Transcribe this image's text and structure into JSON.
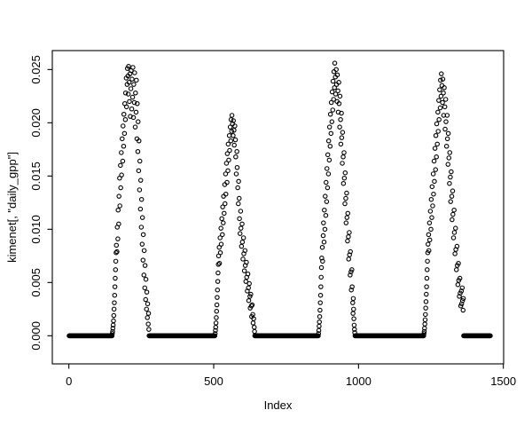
{
  "figure": {
    "background": "#ffffff",
    "foreground": "#000000"
  },
  "chart_data": {
    "type": "scatter",
    "title": "",
    "xlabel": "Index",
    "ylabel": "kimenet[, \"daily_gpp\"]",
    "marker": "open-circle",
    "point_color": "#000000",
    "grid": false,
    "legend": "none",
    "xlim": [
      -57.2,
      1501
    ],
    "ylim": [
      -0.00264,
      0.02678
    ],
    "x_tick_values": [
      0,
      500,
      1000,
      1500
    ],
    "x_tick_labels": [
      "0",
      "500",
      "1000",
      "1500"
    ],
    "y_tick_values": [
      0.0,
      0.005,
      0.01,
      0.015,
      0.02,
      0.025
    ],
    "y_tick_labels": [
      "0.000",
      "0.005",
      "0.010",
      "0.015",
      "0.020",
      "0.025"
    ],
    "n_points": 1455,
    "zero_value": 0.0,
    "zero_runs": [
      [
        1,
        149
      ],
      [
        277,
        504
      ],
      [
        642,
        861
      ],
      [
        988,
        1225
      ],
      [
        1363,
        1455
      ]
    ],
    "points": [
      [
        150,
        0.0002
      ],
      [
        151,
        0.0004
      ],
      [
        152,
        0.0007
      ],
      [
        153,
        0.001
      ],
      [
        154,
        0.0014
      ],
      [
        155,
        0.0019
      ],
      [
        156,
        0.0025
      ],
      [
        157,
        0.0031
      ],
      [
        158,
        0.0038
      ],
      [
        159,
        0.0046
      ],
      [
        160,
        0.0054
      ],
      [
        161,
        0.0062
      ],
      [
        162,
        0.007
      ],
      [
        163,
        0.0078
      ],
      [
        164,
        0.0085
      ],
      [
        166,
        0.0079
      ],
      [
        167,
        0.0102
      ],
      [
        169,
        0.0091
      ],
      [
        170,
        0.0118
      ],
      [
        172,
        0.0105
      ],
      [
        173,
        0.0131
      ],
      [
        175,
        0.0148
      ],
      [
        176,
        0.0122
      ],
      [
        178,
        0.016
      ],
      [
        179,
        0.0139
      ],
      [
        181,
        0.0172
      ],
      [
        182,
        0.0151
      ],
      [
        184,
        0.0185
      ],
      [
        186,
        0.0164
      ],
      [
        187,
        0.0197
      ],
      [
        189,
        0.0178
      ],
      [
        190,
        0.0208
      ],
      [
        192,
        0.019
      ],
      [
        193,
        0.0218
      ],
      [
        195,
        0.0203
      ],
      [
        196,
        0.0228
      ],
      [
        198,
        0.0242
      ],
      [
        199,
        0.0215
      ],
      [
        201,
        0.0236
      ],
      [
        202,
        0.0251
      ],
      [
        204,
        0.0244
      ],
      [
        205,
        0.0227
      ],
      [
        206,
        0.0253
      ],
      [
        208,
        0.0238
      ],
      [
        209,
        0.022
      ],
      [
        211,
        0.0246
      ],
      [
        212,
        0.0206
      ],
      [
        214,
        0.0232
      ],
      [
        215,
        0.0249
      ],
      [
        217,
        0.0213
      ],
      [
        218,
        0.0241
      ],
      [
        220,
        0.0224
      ],
      [
        221,
        0.0252
      ],
      [
        223,
        0.0205
      ],
      [
        224,
        0.0236
      ],
      [
        226,
        0.0219
      ],
      [
        227,
        0.0247
      ],
      [
        229,
        0.0196
      ],
      [
        230,
        0.0228
      ],
      [
        232,
        0.021
      ],
      [
        233,
        0.024
      ],
      [
        235,
        0.0185
      ],
      [
        236,
        0.0218
      ],
      [
        238,
        0.0173
      ],
      [
        239,
        0.0201
      ],
      [
        241,
        0.0155
      ],
      [
        242,
        0.0183
      ],
      [
        244,
        0.0137
      ],
      [
        245,
        0.0164
      ],
      [
        247,
        0.0119
      ],
      [
        248,
        0.0146
      ],
      [
        250,
        0.0102
      ],
      [
        251,
        0.0128
      ],
      [
        253,
        0.0086
      ],
      [
        254,
        0.0111
      ],
      [
        256,
        0.0071
      ],
      [
        257,
        0.0095
      ],
      [
        259,
        0.0057
      ],
      [
        260,
        0.008
      ],
      [
        262,
        0.0045
      ],
      [
        263,
        0.0066
      ],
      [
        265,
        0.0034
      ],
      [
        266,
        0.0053
      ],
      [
        268,
        0.0025
      ],
      [
        269,
        0.0041
      ],
      [
        271,
        0.0017
      ],
      [
        272,
        0.003
      ],
      [
        274,
        0.0011
      ],
      [
        275,
        0.0021
      ],
      [
        276,
        0.0006
      ],
      [
        505,
        0.0002
      ],
      [
        506,
        0.0005
      ],
      [
        507,
        0.0008
      ],
      [
        508,
        0.0012
      ],
      [
        509,
        0.0017
      ],
      [
        510,
        0.0023
      ],
      [
        511,
        0.0029
      ],
      [
        512,
        0.0036
      ],
      [
        513,
        0.0043
      ],
      [
        514,
        0.0051
      ],
      [
        515,
        0.0059
      ],
      [
        516,
        0.0067
      ],
      [
        517,
        0.0075
      ],
      [
        519,
        0.0083
      ],
      [
        520,
        0.0068
      ],
      [
        522,
        0.0092
      ],
      [
        523,
        0.0078
      ],
      [
        525,
        0.0101
      ],
      [
        526,
        0.0086
      ],
      [
        528,
        0.011
      ],
      [
        530,
        0.0095
      ],
      [
        531,
        0.0121
      ],
      [
        533,
        0.0106
      ],
      [
        534,
        0.0131
      ],
      [
        536,
        0.0115
      ],
      [
        538,
        0.0142
      ],
      [
        539,
        0.0124
      ],
      [
        541,
        0.0152
      ],
      [
        542,
        0.0133
      ],
      [
        544,
        0.0162
      ],
      [
        546,
        0.0144
      ],
      [
        547,
        0.0171
      ],
      [
        549,
        0.0155
      ],
      [
        550,
        0.018
      ],
      [
        552,
        0.0165
      ],
      [
        554,
        0.0188
      ],
      [
        555,
        0.0174
      ],
      [
        557,
        0.0196
      ],
      [
        559,
        0.0183
      ],
      [
        560,
        0.0203
      ],
      [
        562,
        0.0192
      ],
      [
        563,
        0.0207
      ],
      [
        565,
        0.0199
      ],
      [
        567,
        0.0188
      ],
      [
        568,
        0.0202
      ],
      [
        570,
        0.0193
      ],
      [
        571,
        0.0179
      ],
      [
        573,
        0.0197
      ],
      [
        575,
        0.0184
      ],
      [
        576,
        0.0168
      ],
      [
        578,
        0.0152
      ],
      [
        580,
        0.0173
      ],
      [
        581,
        0.0158
      ],
      [
        583,
        0.0139
      ],
      [
        585,
        0.0124
      ],
      [
        586,
        0.0145
      ],
      [
        588,
        0.0129
      ],
      [
        589,
        0.011
      ],
      [
        591,
        0.0096
      ],
      [
        593,
        0.0117
      ],
      [
        594,
        0.0101
      ],
      [
        596,
        0.0084
      ],
      [
        598,
        0.0105
      ],
      [
        599,
        0.0088
      ],
      [
        601,
        0.0072
      ],
      [
        603,
        0.0092
      ],
      [
        604,
        0.0077
      ],
      [
        606,
        0.0061
      ],
      [
        608,
        0.008
      ],
      [
        609,
        0.0066
      ],
      [
        611,
        0.0051
      ],
      [
        613,
        0.0069
      ],
      [
        614,
        0.0055
      ],
      [
        616,
        0.0042
      ],
      [
        618,
        0.0058
      ],
      [
        620,
        0.0045
      ],
      [
        621,
        0.0033
      ],
      [
        623,
        0.0049
      ],
      [
        625,
        0.0037
      ],
      [
        626,
        0.0026
      ],
      [
        628,
        0.0039
      ],
      [
        630,
        0.0028
      ],
      [
        631,
        0.0018
      ],
      [
        633,
        0.0029
      ],
      [
        635,
        0.002
      ],
      [
        636,
        0.0012
      ],
      [
        638,
        0.0016
      ],
      [
        640,
        0.0008
      ],
      [
        641,
        0.0004
      ],
      [
        862,
        0.0002
      ],
      [
        863,
        0.0005
      ],
      [
        864,
        0.0009
      ],
      [
        865,
        0.0013
      ],
      [
        866,
        0.0018
      ],
      [
        867,
        0.0024
      ],
      [
        868,
        0.0031
      ],
      [
        869,
        0.0038
      ],
      [
        870,
        0.0046
      ],
      [
        871,
        0.0055
      ],
      [
        872,
        0.0064
      ],
      [
        873,
        0.0073
      ],
      [
        875,
        0.0083
      ],
      [
        876,
        0.007
      ],
      [
        878,
        0.0094
      ],
      [
        879,
        0.0106
      ],
      [
        881,
        0.0088
      ],
      [
        882,
        0.0118
      ],
      [
        884,
        0.01
      ],
      [
        885,
        0.0131
      ],
      [
        887,
        0.0113
      ],
      [
        888,
        0.0144
      ],
      [
        890,
        0.0126
      ],
      [
        891,
        0.0157
      ],
      [
        893,
        0.0139
      ],
      [
        894,
        0.017
      ],
      [
        896,
        0.0152
      ],
      [
        897,
        0.0183
      ],
      [
        899,
        0.0165
      ],
      [
        900,
        0.0196
      ],
      [
        902,
        0.0178
      ],
      [
        903,
        0.0208
      ],
      [
        905,
        0.019
      ],
      [
        906,
        0.0219
      ],
      [
        908,
        0.0201
      ],
      [
        909,
        0.0229
      ],
      [
        911,
        0.0212
      ],
      [
        912,
        0.0239
      ],
      [
        914,
        0.0222
      ],
      [
        915,
        0.0248
      ],
      [
        917,
        0.0233
      ],
      [
        918,
        0.0256
      ],
      [
        920,
        0.0243
      ],
      [
        921,
        0.0227
      ],
      [
        923,
        0.025
      ],
      [
        924,
        0.0236
      ],
      [
        926,
        0.022
      ],
      [
        927,
        0.0245
      ],
      [
        929,
        0.023
      ],
      [
        930,
        0.021
      ],
      [
        932,
        0.0238
      ],
      [
        933,
        0.0218
      ],
      [
        935,
        0.0196
      ],
      [
        936,
        0.0225
      ],
      [
        938,
        0.0203
      ],
      [
        939,
        0.018
      ],
      [
        941,
        0.0209
      ],
      [
        942,
        0.0186
      ],
      [
        944,
        0.0162
      ],
      [
        945,
        0.0191
      ],
      [
        947,
        0.0168
      ],
      [
        948,
        0.0143
      ],
      [
        950,
        0.0172
      ],
      [
        951,
        0.0148
      ],
      [
        953,
        0.0124
      ],
      [
        954,
        0.0153
      ],
      [
        956,
        0.0129
      ],
      [
        957,
        0.0106
      ],
      [
        959,
        0.0134
      ],
      [
        960,
        0.0111
      ],
      [
        962,
        0.0089
      ],
      [
        963,
        0.0115
      ],
      [
        965,
        0.0093
      ],
      [
        966,
        0.0072
      ],
      [
        968,
        0.0097
      ],
      [
        969,
        0.0076
      ],
      [
        971,
        0.0057
      ],
      [
        972,
        0.0079
      ],
      [
        974,
        0.006
      ],
      [
        975,
        0.0043
      ],
      [
        977,
        0.0062
      ],
      [
        978,
        0.0046
      ],
      [
        980,
        0.0031
      ],
      [
        981,
        0.0021
      ],
      [
        982,
        0.0035
      ],
      [
        983,
        0.0025
      ],
      [
        984,
        0.0016
      ],
      [
        985,
        0.001
      ],
      [
        986,
        0.0006
      ],
      [
        987,
        0.0003
      ],
      [
        1226,
        0.0002
      ],
      [
        1227,
        0.0004
      ],
      [
        1228,
        0.0007
      ],
      [
        1229,
        0.0011
      ],
      [
        1230,
        0.0015
      ],
      [
        1231,
        0.002
      ],
      [
        1232,
        0.0026
      ],
      [
        1233,
        0.0032
      ],
      [
        1234,
        0.0039
      ],
      [
        1235,
        0.0046
      ],
      [
        1236,
        0.0054
      ],
      [
        1237,
        0.0062
      ],
      [
        1238,
        0.007
      ],
      [
        1239,
        0.0078
      ],
      [
        1240,
        0.0086
      ],
      [
        1242,
        0.0095
      ],
      [
        1243,
        0.008
      ],
      [
        1245,
        0.0106
      ],
      [
        1246,
        0.009
      ],
      [
        1248,
        0.0117
      ],
      [
        1250,
        0.01
      ],
      [
        1251,
        0.0128
      ],
      [
        1253,
        0.0111
      ],
      [
        1254,
        0.014
      ],
      [
        1256,
        0.0122
      ],
      [
        1258,
        0.0152
      ],
      [
        1259,
        0.0133
      ],
      [
        1261,
        0.0164
      ],
      [
        1262,
        0.0145
      ],
      [
        1264,
        0.0176
      ],
      [
        1266,
        0.0156
      ],
      [
        1267,
        0.0188
      ],
      [
        1269,
        0.0168
      ],
      [
        1270,
        0.0199
      ],
      [
        1272,
        0.018
      ],
      [
        1274,
        0.021
      ],
      [
        1275,
        0.0192
      ],
      [
        1277,
        0.0221
      ],
      [
        1278,
        0.0203
      ],
      [
        1280,
        0.0231
      ],
      [
        1282,
        0.0214
      ],
      [
        1283,
        0.024
      ],
      [
        1285,
        0.0225
      ],
      [
        1286,
        0.0246
      ],
      [
        1288,
        0.0235
      ],
      [
        1290,
        0.0219
      ],
      [
        1291,
        0.0241
      ],
      [
        1293,
        0.0228
      ],
      [
        1294,
        0.0207
      ],
      [
        1296,
        0.0233
      ],
      [
        1298,
        0.0215
      ],
      [
        1299,
        0.0194
      ],
      [
        1301,
        0.0222
      ],
      [
        1302,
        0.0201
      ],
      [
        1304,
        0.0178
      ],
      [
        1306,
        0.0207
      ],
      [
        1307,
        0.0185
      ],
      [
        1309,
        0.0161
      ],
      [
        1310,
        0.019
      ],
      [
        1312,
        0.0167
      ],
      [
        1314,
        0.0143
      ],
      [
        1315,
        0.0172
      ],
      [
        1317,
        0.0149
      ],
      [
        1318,
        0.0126
      ],
      [
        1320,
        0.0154
      ],
      [
        1322,
        0.0131
      ],
      [
        1323,
        0.0109
      ],
      [
        1325,
        0.0136
      ],
      [
        1326,
        0.0114
      ],
      [
        1328,
        0.0092
      ],
      [
        1330,
        0.0118
      ],
      [
        1331,
        0.0097
      ],
      [
        1333,
        0.0077
      ],
      [
        1335,
        0.0101
      ],
      [
        1336,
        0.0081
      ],
      [
        1338,
        0.0062
      ],
      [
        1340,
        0.0084
      ],
      [
        1341,
        0.0066
      ],
      [
        1343,
        0.0048
      ],
      [
        1345,
        0.0068
      ],
      [
        1346,
        0.0052
      ],
      [
        1348,
        0.0037
      ],
      [
        1350,
        0.0054
      ],
      [
        1351,
        0.004
      ],
      [
        1353,
        0.0028
      ],
      [
        1355,
        0.0042
      ],
      [
        1356,
        0.003
      ],
      [
        1358,
        0.0045
      ],
      [
        1359,
        0.0033
      ],
      [
        1361,
        0.0024
      ],
      [
        1362,
        0.0035
      ]
    ]
  }
}
